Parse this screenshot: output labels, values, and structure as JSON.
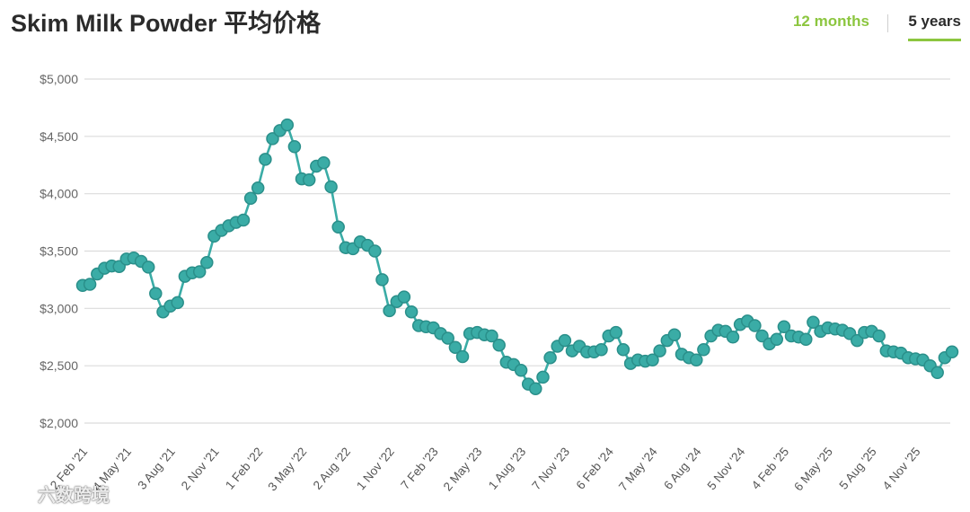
{
  "header": {
    "title": "Skim Milk Powder 平均价格",
    "tabs": [
      {
        "label": "12 months",
        "active": false
      },
      {
        "label": "5 years",
        "active": true
      }
    ]
  },
  "colors": {
    "series": "#3aaca6",
    "marker_edge": "#2a8f8a",
    "active_tab": "#8cc63f",
    "grid": "#dcdcdc"
  },
  "watermark": {
    "text": "六数跨境",
    "icon": "logo-icon"
  },
  "chart_data": {
    "type": "line",
    "title": "",
    "xlabel": "",
    "ylabel": "",
    "ylim": [
      2000,
      5000
    ],
    "y_ticks": [
      2000,
      2500,
      3000,
      3500,
      4000,
      4500,
      5000
    ],
    "y_tick_labels": [
      "$2,000",
      "$2,500",
      "$3,000",
      "$3,500",
      "$4,000",
      "$4,500",
      "$5,000"
    ],
    "x_tick_labels": [
      "2 Feb '21",
      "4 May '21",
      "3 Aug '21",
      "2 Nov '21",
      "1 Feb '22",
      "3 May '22",
      "2 Aug '22",
      "1 Nov '22",
      "7 Feb '23",
      "2 May '23",
      "1 Aug '23",
      "7 Nov '23",
      "6 Feb '24",
      "7 May '24",
      "6 Aug '24",
      "5 Nov '24",
      "4 Feb '25",
      "6 May '25",
      "5 Aug '25",
      "4 Nov '25"
    ],
    "x_tick_index": [
      0,
      6,
      12,
      18,
      24,
      30,
      36,
      42,
      48,
      54,
      60,
      66,
      72,
      78,
      84,
      90,
      96,
      102,
      108,
      114
    ],
    "grid": true,
    "legend": "none",
    "series": [
      {
        "values": [
          3200,
          3210,
          3300,
          3350,
          3370,
          3365,
          3430,
          3440,
          3410,
          3360,
          3130,
          2970,
          3020,
          3050,
          3280,
          3310,
          3320,
          3400,
          3630,
          3680,
          3720,
          3750,
          3770,
          3960,
          4050,
          4300,
          4480,
          4550,
          4600,
          4410,
          4130,
          4120,
          4240,
          4270,
          4060,
          3710,
          3530,
          3520,
          3580,
          3550,
          3500,
          3250,
          2980,
          3060,
          3100,
          2970,
          2850,
          2840,
          2830,
          2780,
          2740,
          2660,
          2580,
          2780,
          2790,
          2770,
          2760,
          2680,
          2530,
          2510,
          2460,
          2340,
          2300,
          2400,
          2570,
          2670,
          2720,
          2630,
          2670,
          2620,
          2620,
          2640,
          2760,
          2790,
          2640,
          2520,
          2550,
          2540,
          2550,
          2630,
          2720,
          2770,
          2600,
          2570,
          2550,
          2640,
          2760,
          2810,
          2800,
          2750,
          2860,
          2890,
          2850,
          2760,
          2690,
          2730,
          2840,
          2760,
          2750,
          2730,
          2880,
          2800,
          2830,
          2820,
          2810,
          2780,
          2720,
          2790,
          2800,
          2760,
          2630,
          2620,
          2610,
          2570,
          2560,
          2550,
          2500,
          2440,
          2570,
          2620
        ]
      }
    ]
  }
}
